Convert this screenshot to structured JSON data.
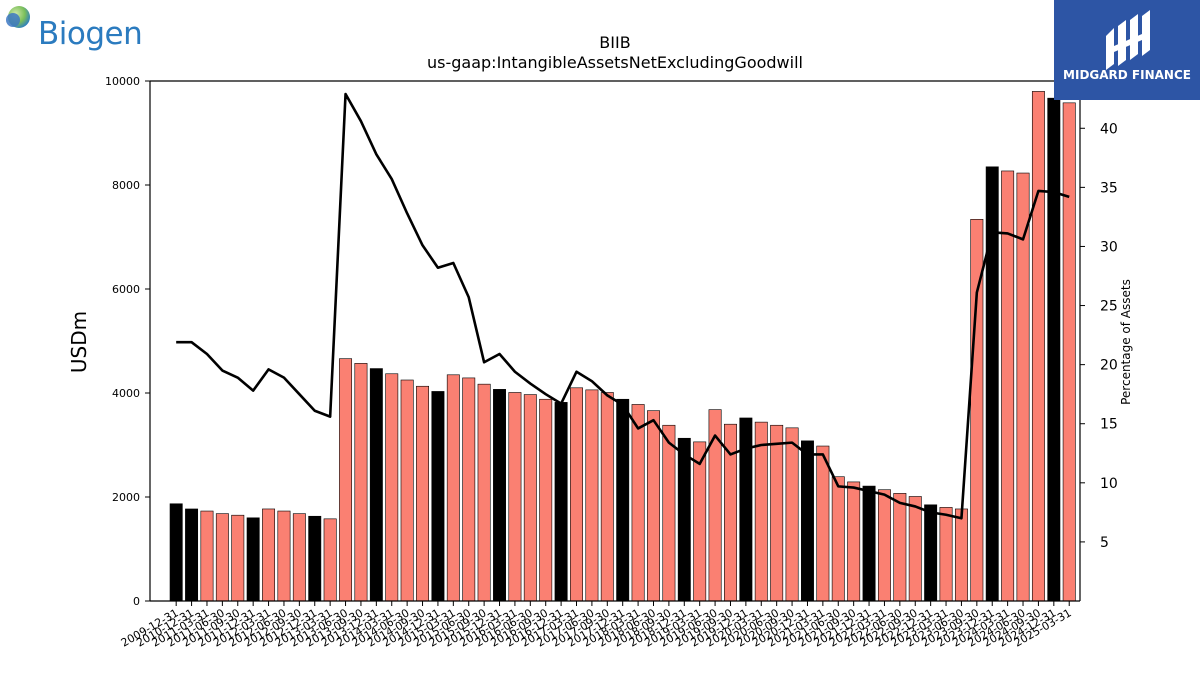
{
  "logos": {
    "left_brand": "Biogen",
    "right_brand": "MIDGARD FINANCE"
  },
  "chart_data": {
    "type": "bar",
    "title": "BIIB",
    "subtitle": "us-gaap:IntangibleAssetsNetExcludingGoodwill",
    "ylabel": "USDm",
    "y2label": "Percentage of Assets",
    "ylim": [
      0,
      10000
    ],
    "y2lim": [
      0,
      44
    ],
    "yticks": [
      0,
      2000,
      4000,
      6000,
      8000,
      10000
    ],
    "y2ticks": [
      5,
      10,
      15,
      20,
      25,
      30,
      35,
      40
    ],
    "colors": {
      "annual": "#000000",
      "quarterly": "#fa8072",
      "line": "#000000"
    },
    "categories": [
      "2009-12-31",
      "2010-12-31",
      "2011-03-31",
      "2011-06-30",
      "2011-09-30",
      "2011-12-31",
      "2012-03-31",
      "2012-06-30",
      "2012-09-30",
      "2012-12-31",
      "2013-03-31",
      "2013-06-30",
      "2013-09-30",
      "2013-12-31",
      "2014-03-31",
      "2014-06-30",
      "2014-09-30",
      "2014-12-31",
      "2015-03-31",
      "2015-06-30",
      "2015-09-30",
      "2015-12-31",
      "2016-03-31",
      "2016-06-30",
      "2016-09-30",
      "2016-12-31",
      "2017-03-31",
      "2017-06-30",
      "2017-09-30",
      "2017-12-31",
      "2018-03-31",
      "2018-06-30",
      "2018-09-30",
      "2018-12-31",
      "2019-03-31",
      "2019-06-30",
      "2019-09-30",
      "2019-12-31",
      "2020-03-31",
      "2020-06-30",
      "2020-09-30",
      "2020-12-31",
      "2021-03-31",
      "2021-06-30",
      "2021-09-30",
      "2021-12-31",
      "2022-03-31",
      "2022-06-30",
      "2022-09-30",
      "2022-12-31",
      "2023-03-31",
      "2023-06-30",
      "2023-09-30",
      "2023-12-31",
      "2024-03-31",
      "2024-06-30",
      "2024-09-30",
      "2024-12-31",
      "2025-03-31"
    ],
    "xtick_labels": [
      "2009-12-31",
      "2010-12-31",
      "2011-03-31",
      "2011-06-30",
      "2011-09-30",
      "2011-12-31",
      "2012-03-31",
      "2012-06-30",
      "2012-09-30",
      "2012-12-31",
      "2013-03-31",
      "2013-06-30",
      "2013-09-30",
      "2013-12-31",
      "2014-03-31",
      "2014-06-30",
      "2014-09-30",
      "2014-12-31",
      "2015-03-31",
      "2015-06-30",
      "2015-09-30",
      "2015-12-31",
      "2016-03-31",
      "2016-06-30",
      "2016-09-30",
      "2016-12-31",
      "2017-03-31",
      "2017-06-30",
      "2017-09-30",
      "2017-12-31",
      "2018-03-31",
      "2018-06-30",
      "2018-09-30",
      "2018-12-31",
      "2019-03-31",
      "2019-06-30",
      "2019-09-30",
      "2019-12-31",
      "2020-03-31",
      "2020-06-30",
      "2020-09-30",
      "2020-12-31",
      "2021-03-31",
      "2021-06-30",
      "2021-09-30",
      "2021-12-31",
      "2022-03-31",
      "2022-06-30",
      "2022-09-30",
      "2022-12-31",
      "2023-03-31",
      "2023-06-30",
      "2023-09-30",
      "2023-12-31",
      "2024-03-31",
      "2024-06-30",
      "2024-09-30",
      "2024-12-31",
      "2025-03-31"
    ],
    "annual": [
      true,
      true,
      false,
      false,
      false,
      true,
      false,
      false,
      false,
      true,
      false,
      false,
      false,
      true,
      false,
      false,
      false,
      true,
      false,
      false,
      false,
      true,
      false,
      false,
      false,
      true,
      false,
      false,
      false,
      true,
      false,
      false,
      false,
      true,
      false,
      false,
      false,
      true,
      false,
      false,
      false,
      true,
      false,
      false,
      false,
      true,
      false,
      false,
      false,
      true,
      false,
      false,
      false,
      true,
      false,
      false,
      false,
      true,
      false
    ],
    "series": [
      {
        "name": "USDm",
        "kind": "bar",
        "values": [
          1870,
          1770,
          1730,
          1680,
          1650,
          1600,
          1770,
          1730,
          1680,
          1630,
          1580,
          4660,
          4570,
          4470,
          4370,
          4250,
          4130,
          4030,
          4350,
          4290,
          4170,
          4070,
          4010,
          3970,
          3880,
          3820,
          4100,
          4060,
          4010,
          3880,
          3780,
          3660,
          3380,
          3130,
          3060,
          3680,
          3400,
          3520,
          3440,
          3380,
          3330,
          3080,
          2980,
          2390,
          2290,
          2210,
          2140,
          2070,
          2010,
          1850,
          1800,
          1770,
          7340,
          8350,
          8270,
          8230,
          9800,
          9670,
          9580
        ]
      },
      {
        "name": "Percentage of Assets",
        "kind": "line",
        "values": [
          21.9,
          21.9,
          20.9,
          19.5,
          18.9,
          17.8,
          19.6,
          18.9,
          17.5,
          16.1,
          15.6,
          42.9,
          40.6,
          37.8,
          35.7,
          32.8,
          30.1,
          28.2,
          28.6,
          25.7,
          20.2,
          20.9,
          19.4,
          18.4,
          17.5,
          16.7,
          19.4,
          18.6,
          17.4,
          16.6,
          14.6,
          15.3,
          13.4,
          12.4,
          11.6,
          14.0,
          12.4,
          12.9,
          13.2,
          13.3,
          13.4,
          12.4,
          12.4,
          9.7,
          9.6,
          9.3,
          9.0,
          8.3,
          8.0,
          7.5,
          7.3,
          7.0,
          26.1,
          31.2,
          31.1,
          30.6,
          34.7,
          34.6,
          34.2
        ]
      }
    ],
    "grid": false,
    "legend": "none"
  }
}
